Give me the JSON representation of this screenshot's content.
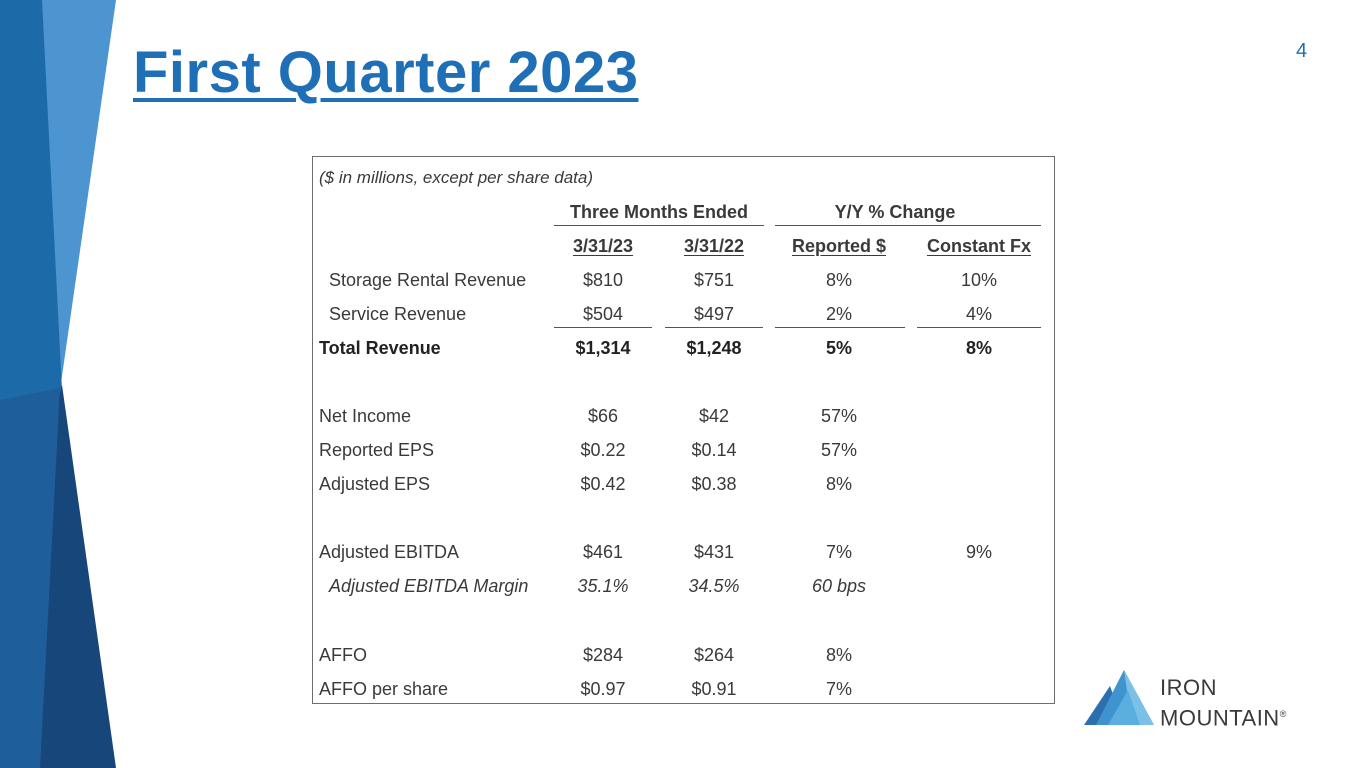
{
  "slide": {
    "title": "First Quarter 2023",
    "page_number": "4",
    "colors": {
      "title_blue": "#1f6fb6",
      "decor_light_blue": "#4d95d0",
      "decor_mid_blue": "#1d6aa9",
      "decor_dark_blue": "#17467a"
    }
  },
  "table": {
    "note": "($ in millions, except per share data)",
    "group_headers": {
      "three_months": "Three Months Ended",
      "yy_change": "Y/Y % Change"
    },
    "column_headers": [
      "3/31/23",
      "3/31/22",
      "Reported $",
      "Constant Fx"
    ],
    "rows": [
      {
        "label": "Storage Rental Revenue",
        "q1_23": "$810",
        "q1_22": "$751",
        "reported": "8%",
        "constant_fx": "10%"
      },
      {
        "label": "Service Revenue",
        "q1_23": "$504",
        "q1_22": "$497",
        "reported": "2%",
        "constant_fx": "4%"
      },
      {
        "label": "Total Revenue",
        "q1_23": "$1,314",
        "q1_22": "$1,248",
        "reported": "5%",
        "constant_fx": "8%"
      },
      {
        "label": "Net Income",
        "q1_23": "$66",
        "q1_22": "$42",
        "reported": "57%",
        "constant_fx": ""
      },
      {
        "label": "Reported EPS",
        "q1_23": "$0.22",
        "q1_22": "$0.14",
        "reported": "57%",
        "constant_fx": ""
      },
      {
        "label": "Adjusted EPS",
        "q1_23": "$0.42",
        "q1_22": "$0.38",
        "reported": "8%",
        "constant_fx": ""
      },
      {
        "label": "Adjusted EBITDA",
        "q1_23": "$461",
        "q1_22": "$431",
        "reported": "7%",
        "constant_fx": "9%"
      },
      {
        "label": "Adjusted EBITDA Margin",
        "q1_23": "35.1%",
        "q1_22": "34.5%",
        "reported": "60 bps",
        "constant_fx": ""
      },
      {
        "label": "AFFO",
        "q1_23": "$284",
        "q1_22": "$264",
        "reported": "8%",
        "constant_fx": ""
      },
      {
        "label": "AFFO per share",
        "q1_23": "$0.97",
        "q1_22": "$0.91",
        "reported": "7%",
        "constant_fx": ""
      }
    ]
  },
  "logo": {
    "line1": "IRON",
    "line2": "MOUNTAIN",
    "mark": "®",
    "icon": "mountain-icon"
  }
}
